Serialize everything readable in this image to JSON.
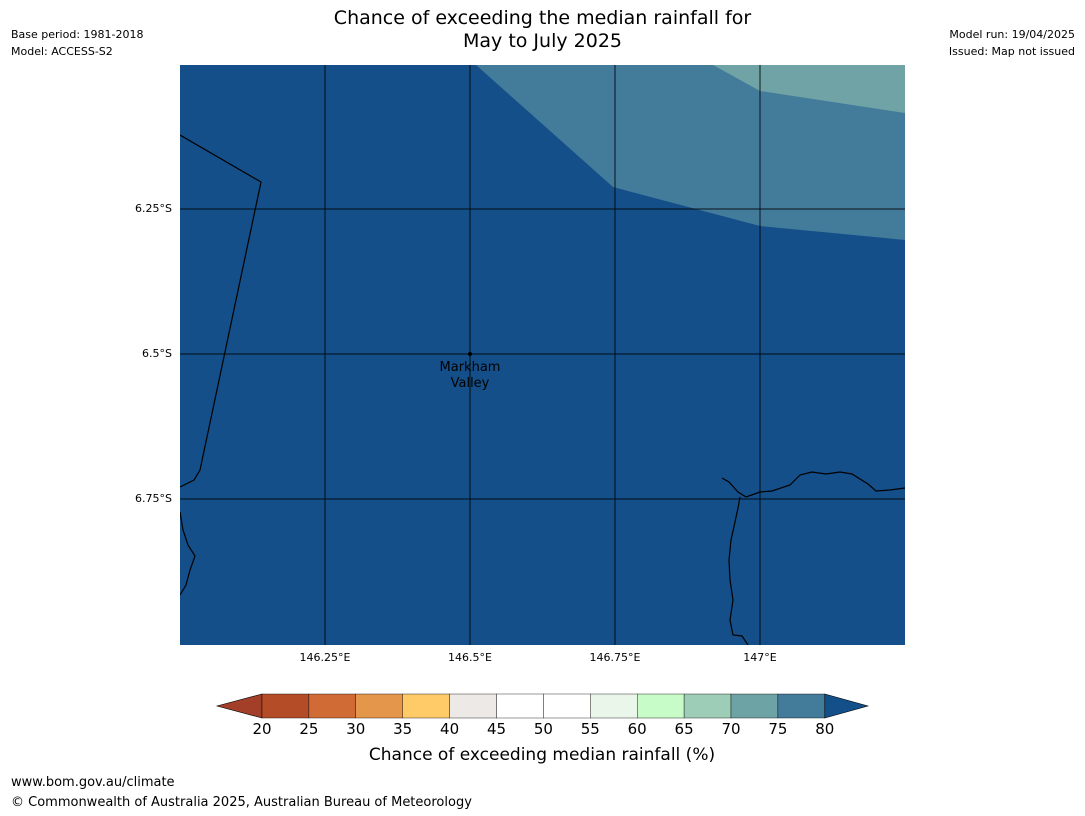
{
  "title": {
    "line1": "Chance of exceeding the median rainfall for",
    "line2": "May to July 2025"
  },
  "meta_left": {
    "base_period": "Base period: 1981-2018",
    "model": "Model: ACCESS-S2"
  },
  "meta_right": {
    "model_run": "Model run: 19/04/2025",
    "issued": "Issued: Map not issued"
  },
  "map": {
    "lat_labels": [
      "6.25°S",
      "6.5°S",
      "6.75°S"
    ],
    "lon_labels": [
      "146.25°E",
      "146.5°E",
      "146.75°E",
      "147°E"
    ],
    "place": {
      "name_line1": "Markham",
      "name_line2": "Valley"
    },
    "colors": {
      "base": "#144f89",
      "band_70_80": "#437b9b",
      "band_65_70": "#6fa3a5",
      "coast": "#000000",
      "grid": "#000000"
    }
  },
  "colorbar": {
    "ticks": [
      "20",
      "25",
      "30",
      "35",
      "40",
      "45",
      "50",
      "55",
      "60",
      "65",
      "70",
      "75",
      "80"
    ],
    "colors": [
      "#a33e28",
      "#b44c28",
      "#d06b35",
      "#e4964a",
      "#fecb68",
      "#ede9e6",
      "#ffffff",
      "#ffffff",
      "#eaf6e9",
      "#c7fbc7",
      "#9ecdb7",
      "#6ea3a5",
      "#437b9b",
      "#134f89"
    ],
    "title": "Chance of exceeding median rainfall (%)"
  },
  "footer": {
    "url": "www.bom.gov.au/climate",
    "copyright": "© Commonwealth of Australia 2025, Australian Bureau of Meteorology"
  }
}
